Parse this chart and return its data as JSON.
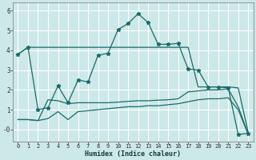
{
  "xlabel": "Humidex (Indice chaleur)",
  "bg_color": "#cce8e8",
  "grid_color": "#ffffff",
  "line_color": "#1a6b6b",
  "xlim": [
    -0.5,
    23.5
  ],
  "ylim": [
    -0.6,
    6.4
  ],
  "xticks": [
    0,
    1,
    2,
    3,
    4,
    5,
    6,
    7,
    8,
    9,
    10,
    11,
    12,
    13,
    14,
    15,
    16,
    17,
    18,
    19,
    20,
    21,
    22,
    23
  ],
  "yticks": [
    0,
    1,
    2,
    3,
    4,
    5,
    6
  ],
  "ytick_labels": [
    "-0",
    "1",
    "2",
    "3",
    "4",
    "5",
    "6"
  ],
  "flat_line_y": [
    3.8,
    4.15,
    4.15,
    4.15,
    4.15,
    4.15,
    4.15,
    4.15,
    4.15,
    4.15,
    4.15,
    4.15,
    4.15,
    4.15,
    4.15,
    4.15,
    4.15,
    4.15,
    2.15,
    2.15,
    2.15,
    2.15,
    2.1,
    -0.15
  ],
  "lower1_y": [
    0.5,
    0.5,
    0.45,
    0.55,
    0.9,
    0.5,
    0.9,
    0.95,
    1.0,
    1.05,
    1.1,
    1.15,
    1.15,
    1.2,
    1.2,
    1.25,
    1.3,
    1.4,
    1.5,
    1.55,
    1.55,
    1.6,
    1.0,
    -0.25
  ],
  "lower2_y": [
    0.5,
    0.5,
    0.45,
    1.5,
    1.45,
    1.3,
    1.35,
    1.35,
    1.35,
    1.35,
    1.38,
    1.42,
    1.45,
    1.45,
    1.48,
    1.5,
    1.55,
    1.9,
    1.95,
    2.0,
    2.0,
    2.05,
    1.15,
    -0.25
  ],
  "main_x": [
    0,
    1,
    2,
    3,
    4,
    5,
    6,
    7,
    8,
    9,
    10,
    11,
    12,
    13,
    14,
    15,
    16,
    17,
    18,
    19,
    20,
    21,
    22,
    23
  ],
  "main_y": [
    3.8,
    4.15,
    1.0,
    1.1,
    2.2,
    1.35,
    2.5,
    2.4,
    3.75,
    3.85,
    5.05,
    5.35,
    5.85,
    5.4,
    4.3,
    4.3,
    4.35,
    3.05,
    3.0,
    2.15,
    2.15,
    2.1,
    -0.25,
    -0.2
  ]
}
